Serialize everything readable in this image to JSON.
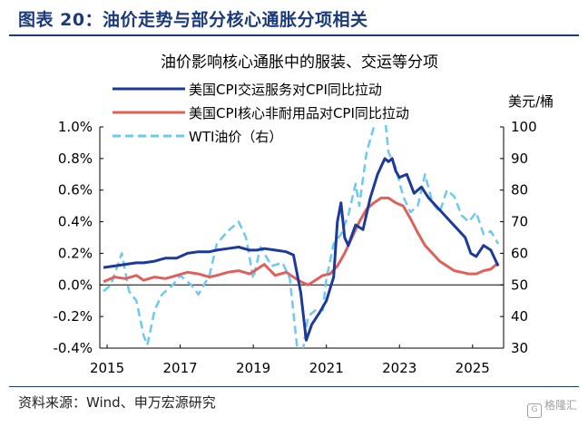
{
  "header": {
    "title": "图表 20：油价走势与部分核心通胀分项相关"
  },
  "footer": {
    "source": "资料来源：Wind、申万宏源研究",
    "watermark": "格隆汇"
  },
  "colors": {
    "navy": "#1b3a9a",
    "red": "#e0605a",
    "lightblue": "#6ec9f0",
    "axis": "#000000"
  },
  "chart_data": {
    "type": "line",
    "title": "油价影响核心通胀中的服装、交运等分项",
    "y_unit_right": "美元/桶",
    "xlim": [
      2014.8,
      2025.85
    ],
    "x_ticks": [
      2015,
      2017,
      2019,
      2021,
      2023,
      2025
    ],
    "x_tick_labels": [
      "2015",
      "2017",
      "2019",
      "2021",
      "2023",
      "2025"
    ],
    "ylim_left": [
      -0.4,
      1.0
    ],
    "y_ticks_left": [
      -0.4,
      -0.2,
      0.0,
      0.2,
      0.4,
      0.6,
      0.8,
      1.0
    ],
    "y_tick_labels_left": [
      "-0.4%",
      "-0.2%",
      "0.0%",
      "0.2%",
      "0.4%",
      "0.6%",
      "0.8%",
      "1.0%"
    ],
    "ylim_right": [
      30,
      100
    ],
    "y_ticks_right": [
      30,
      40,
      50,
      60,
      70,
      80,
      90,
      100
    ],
    "y_tick_labels_right": [
      "30",
      "40",
      "50",
      "60",
      "70",
      "80",
      "90",
      "100"
    ],
    "legend_position": "top-left",
    "series": [
      {
        "name": "美国CPI交运服务对CPI同比拉动",
        "axis": "left",
        "style": "solid",
        "color": "#1b3a9a",
        "x": [
          2014.9,
          2015.2,
          2015.5,
          2015.8,
          2016.0,
          2016.3,
          2016.6,
          2016.9,
          2017.2,
          2017.5,
          2017.8,
          2018.0,
          2018.3,
          2018.6,
          2018.9,
          2019.1,
          2019.3,
          2019.6,
          2019.9,
          2020.1,
          2020.3,
          2020.45,
          2020.6,
          2020.8,
          2021.0,
          2021.2,
          2021.3,
          2021.4,
          2021.5,
          2021.6,
          2021.8,
          2022.0,
          2022.2,
          2022.4,
          2022.6,
          2022.7,
          2022.8,
          2022.9,
          2023.0,
          2023.2,
          2023.4,
          2023.6,
          2023.8,
          2024.0,
          2024.2,
          2024.4,
          2024.6,
          2024.8,
          2024.95,
          2025.1,
          2025.3,
          2025.5,
          2025.7
        ],
        "y": [
          0.11,
          0.12,
          0.13,
          0.14,
          0.14,
          0.15,
          0.17,
          0.17,
          0.2,
          0.21,
          0.21,
          0.22,
          0.23,
          0.24,
          0.22,
          0.22,
          0.23,
          0.22,
          0.21,
          0.19,
          -0.05,
          -0.35,
          -0.25,
          -0.18,
          -0.1,
          0.05,
          0.4,
          0.52,
          0.3,
          0.25,
          0.38,
          0.35,
          0.55,
          0.7,
          0.8,
          0.78,
          0.8,
          0.72,
          0.68,
          0.7,
          0.58,
          0.62,
          0.55,
          0.5,
          0.45,
          0.4,
          0.35,
          0.3,
          0.2,
          0.18,
          0.25,
          0.22,
          0.12
        ]
      },
      {
        "name": "美国CPI核心非耐用品对CPI同比拉动",
        "axis": "left",
        "style": "solid",
        "color": "#e0605a",
        "x": [
          2014.9,
          2015.2,
          2015.5,
          2015.8,
          2016.0,
          2016.3,
          2016.6,
          2016.9,
          2017.2,
          2017.5,
          2017.8,
          2018.0,
          2018.3,
          2018.6,
          2018.9,
          2019.1,
          2019.3,
          2019.6,
          2019.9,
          2020.1,
          2020.3,
          2020.5,
          2020.7,
          2020.9,
          2021.1,
          2021.3,
          2021.5,
          2021.7,
          2021.9,
          2022.1,
          2022.3,
          2022.5,
          2022.7,
          2022.9,
          2023.1,
          2023.3,
          2023.5,
          2023.7,
          2023.9,
          2024.1,
          2024.3,
          2024.5,
          2024.7,
          2024.9,
          2025.1,
          2025.3,
          2025.5,
          2025.7
        ],
        "y": [
          0.02,
          0.05,
          0.04,
          0.06,
          0.03,
          0.05,
          0.04,
          0.06,
          0.08,
          0.07,
          0.05,
          0.06,
          0.08,
          0.09,
          0.07,
          0.1,
          0.13,
          0.06,
          0.08,
          0.05,
          0.02,
          0.0,
          0.03,
          0.06,
          0.07,
          0.12,
          0.2,
          0.3,
          0.4,
          0.48,
          0.52,
          0.55,
          0.55,
          0.52,
          0.5,
          0.42,
          0.33,
          0.25,
          0.2,
          0.15,
          0.12,
          0.09,
          0.08,
          0.07,
          0.07,
          0.09,
          0.1,
          0.14
        ]
      },
      {
        "name": "WTI油价（右）",
        "axis": "right",
        "style": "dashed",
        "color": "#6ec9f0",
        "x": [
          2014.9,
          2015.1,
          2015.4,
          2015.6,
          2015.8,
          2016.0,
          2016.1,
          2016.3,
          2016.5,
          2016.8,
          2017.0,
          2017.3,
          2017.5,
          2017.8,
          2018.0,
          2018.3,
          2018.6,
          2018.8,
          2019.0,
          2019.2,
          2019.5,
          2019.8,
          2020.0,
          2020.2,
          2020.3,
          2020.5,
          2020.7,
          2020.9,
          2021.0,
          2021.2,
          2021.4,
          2021.6,
          2021.8,
          2021.9,
          2022.1,
          2022.3,
          2022.5,
          2022.7,
          2022.9,
          2023.1,
          2023.3,
          2023.5,
          2023.7,
          2023.9,
          2024.1,
          2024.3,
          2024.5,
          2024.7,
          2024.9,
          2025.1,
          2025.3,
          2025.5,
          2025.7
        ],
        "y": [
          48,
          50,
          60,
          48,
          45,
          34,
          31,
          42,
          47,
          50,
          53,
          50,
          47,
          53,
          63,
          67,
          70,
          65,
          52,
          62,
          56,
          57,
          52,
          30,
          25,
          40,
          42,
          42,
          52,
          63,
          66,
          72,
          82,
          75,
          92,
          100,
          115,
          92,
          87,
          78,
          73,
          75,
          85,
          76,
          73,
          80,
          78,
          72,
          70,
          73,
          66,
          67,
          63
        ]
      }
    ]
  }
}
